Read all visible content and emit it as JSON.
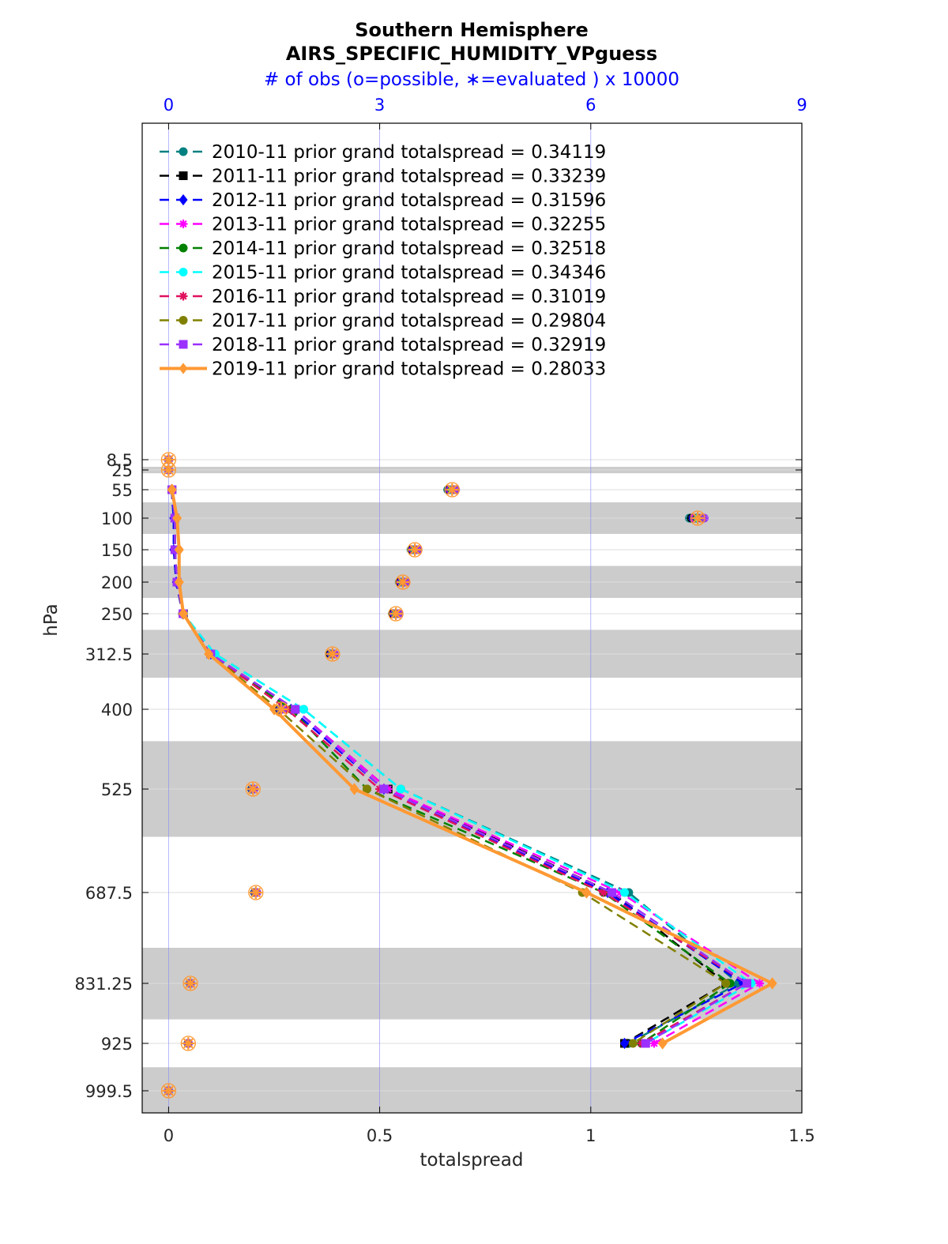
{
  "chart_data": {
    "type": "line",
    "title": "Southern Hemisphere",
    "subtitle": "AIRS_SPECIFIC_HUMIDITY_VPguess",
    "top_axis_label": "# of obs (o=possible, ∗=evaluated ) x 10000",
    "xlabel": "totalspread",
    "ylabel": "hPa",
    "xlim": [
      -0.0625,
      1.5
    ],
    "x_ticks": [
      0,
      0.5,
      1,
      1.5
    ],
    "x_tick_labels": [
      "0",
      "0.5",
      "1",
      "1.5"
    ],
    "top_xlim": [
      -0.375,
      9
    ],
    "top_ticks": [
      0,
      3,
      6,
      9
    ],
    "top_tick_labels": [
      "0",
      "3",
      "6",
      "9"
    ],
    "y_reversed": true,
    "levels": [
      8.5,
      25,
      55,
      100,
      150,
      200,
      250,
      312.5,
      400,
      525,
      687.5,
      831.25,
      925,
      999.5
    ],
    "level_labels": [
      "8.5",
      "25",
      "55",
      "100",
      "150",
      "200",
      "250",
      "312.5",
      "400",
      "525",
      "687.5",
      "831.25",
      "925",
      "999.5"
    ],
    "shaded_bands": [
      [
        20,
        30
      ],
      [
        75,
        125
      ],
      [
        175,
        225
      ],
      [
        275,
        350
      ],
      [
        450,
        600
      ],
      [
        775,
        887.5
      ],
      [
        962.5,
        1037
      ]
    ],
    "grid": true,
    "legend_position": "top-left",
    "colors": {
      "obs_marker": "#ff8c2a",
      "top_axis": "#0000ff",
      "band": "#cccccc",
      "vgrid": "#8080ff"
    },
    "series": [
      {
        "name": "2010-11 prior grand totalspread = 0.34119",
        "color": "#008080",
        "dash": true,
        "marker": "circle",
        "levels": [
          55,
          100,
          150,
          200,
          250,
          312.5,
          400,
          525,
          687.5,
          831.25,
          925
        ],
        "values": [
          0.008,
          0.015,
          0.015,
          0.02,
          0.035,
          0.11,
          0.32,
          0.55,
          1.09,
          1.35,
          1.09
        ]
      },
      {
        "name": "2011-11 prior grand totalspread = 0.33239",
        "color": "#000000",
        "dash": true,
        "marker": "square",
        "levels": [
          55,
          100,
          150,
          200,
          250,
          312.5,
          400,
          525,
          687.5,
          831.25,
          925
        ],
        "values": [
          0.008,
          0.015,
          0.015,
          0.02,
          0.035,
          0.1,
          0.3,
          0.52,
          1.05,
          1.32,
          1.08
        ]
      },
      {
        "name": "2012-11 prior grand totalspread = 0.31596",
        "color": "#0000ff",
        "dash": true,
        "marker": "diamond",
        "levels": [
          55,
          100,
          150,
          200,
          250,
          312.5,
          400,
          525,
          687.5,
          831.25,
          925
        ],
        "values": [
          0.007,
          0.012,
          0.012,
          0.018,
          0.033,
          0.1,
          0.29,
          0.51,
          1.04,
          1.36,
          1.08
        ]
      },
      {
        "name": "2013-11 prior grand totalspread = 0.32255",
        "color": "#ff00ff",
        "dash": true,
        "marker": "star",
        "levels": [
          55,
          100,
          150,
          200,
          250,
          312.5,
          400,
          525,
          687.5,
          831.25,
          925
        ],
        "values": [
          0.008,
          0.015,
          0.015,
          0.02,
          0.034,
          0.1,
          0.3,
          0.52,
          1.07,
          1.4,
          1.15
        ]
      },
      {
        "name": "2014-11 prior grand totalspread = 0.32518",
        "color": "#008000",
        "dash": true,
        "marker": "circle",
        "levels": [
          55,
          100,
          150,
          200,
          250,
          312.5,
          400,
          525,
          687.5,
          831.25,
          925
        ],
        "values": [
          0.008,
          0.015,
          0.015,
          0.02,
          0.034,
          0.1,
          0.29,
          0.47,
          1.03,
          1.33,
          1.12
        ]
      },
      {
        "name": "2015-11 prior grand totalspread = 0.34346",
        "color": "#00ffff",
        "dash": true,
        "marker": "circle",
        "levels": [
          55,
          100,
          150,
          200,
          250,
          312.5,
          400,
          525,
          687.5,
          831.25,
          925
        ],
        "values": [
          0.008,
          0.015,
          0.015,
          0.02,
          0.035,
          0.11,
          0.32,
          0.55,
          1.08,
          1.38,
          1.13
        ]
      },
      {
        "name": "2016-11 prior grand totalspread = 0.31019",
        "color": "#e0115f",
        "dash": true,
        "marker": "star",
        "levels": [
          55,
          100,
          150,
          200,
          250,
          312.5,
          400,
          525,
          687.5,
          831.25,
          925
        ],
        "values": [
          0.008,
          0.015,
          0.015,
          0.02,
          0.033,
          0.1,
          0.28,
          0.5,
          1.03,
          1.37,
          1.12
        ]
      },
      {
        "name": "2017-11 prior grand totalspread = 0.29804",
        "color": "#808000",
        "dash": true,
        "marker": "circle",
        "levels": [
          55,
          100,
          150,
          200,
          250,
          312.5,
          400,
          525,
          687.5,
          831.25,
          925
        ],
        "values": [
          0.008,
          0.015,
          0.015,
          0.02,
          0.033,
          0.1,
          0.26,
          0.47,
          0.98,
          1.32,
          1.1
        ]
      },
      {
        "name": "2018-11 prior grand totalspread = 0.32919",
        "color": "#9b30ff",
        "dash": true,
        "marker": "square",
        "levels": [
          55,
          100,
          150,
          200,
          250,
          312.5,
          400,
          525,
          687.5,
          831.25,
          925
        ],
        "values": [
          0.008,
          0.015,
          0.015,
          0.02,
          0.034,
          0.1,
          0.3,
          0.51,
          1.05,
          1.37,
          1.13
        ]
      },
      {
        "name": "2019-11 prior grand totalspread = 0.28033",
        "color": "#ff9933",
        "dash": false,
        "marker": "diamond",
        "levels": [
          55,
          100,
          150,
          200,
          250,
          312.5,
          400,
          525,
          687.5,
          831.25,
          925
        ],
        "values": [
          0.008,
          0.02,
          0.025,
          0.025,
          0.035,
          0.095,
          0.25,
          0.44,
          0.99,
          1.43,
          1.17
        ]
      }
    ],
    "obs_counts": {
      "levels": [
        8.5,
        25,
        55,
        100,
        150,
        200,
        250,
        312.5,
        400,
        525,
        687.5,
        831.25,
        925,
        999.5
      ],
      "possible": [
        0,
        0,
        4.03,
        7.52,
        3.5,
        3.33,
        3.23,
        2.33,
        1.6,
        1.2,
        1.24,
        0.31,
        0.28,
        0
      ],
      "evaluated": [
        0,
        0,
        4.03,
        7.52,
        3.5,
        3.33,
        3.23,
        2.33,
        1.6,
        1.2,
        1.24,
        0.31,
        0.28,
        0
      ]
    }
  }
}
